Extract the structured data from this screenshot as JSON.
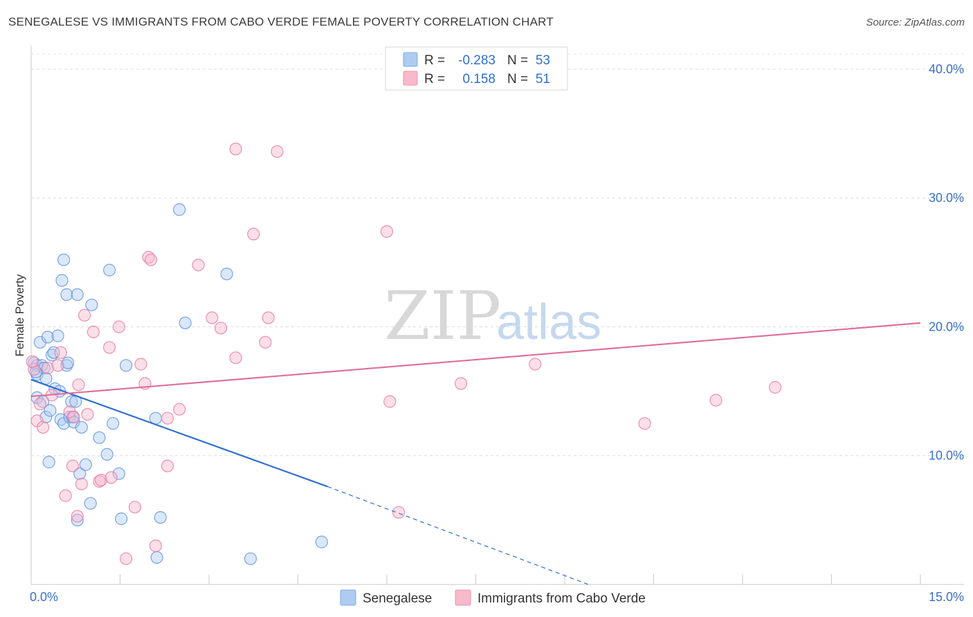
{
  "title": "SENEGALESE VS IMMIGRANTS FROM CABO VERDE FEMALE POVERTY CORRELATION CHART",
  "source": "Source: ZipAtlas.com",
  "watermark": {
    "zip": "ZIP",
    "atlas": "atlas"
  },
  "legend": {
    "rows": [
      {
        "r_label": "R =",
        "r_value": "-0.283",
        "n_label": "N =",
        "n_value": "53",
        "color": "#aecbf2"
      },
      {
        "r_label": "R =",
        "r_value": "0.158",
        "n_label": "N =",
        "n_value": "51",
        "color": "#f7b9cc"
      }
    ]
  },
  "bottom_legend": [
    "Senegalese",
    "Immigrants from Cabo Verde"
  ],
  "chart_data": {
    "type": "scatter",
    "title": "SENEGALESE VS IMMIGRANTS FROM CABO VERDE FEMALE POVERTY CORRELATION CHART",
    "xlabel": "",
    "ylabel": "Female Poverty",
    "xlim": [
      0,
      15
    ],
    "ylim": [
      0,
      41.5
    ],
    "x_tick_labels": [
      "0.0%",
      "15.0%"
    ],
    "y_ticks": [
      10,
      20,
      30,
      40
    ],
    "y_tick_labels": [
      "10.0%",
      "20.0%",
      "30.0%",
      "40.0%"
    ],
    "grid": true,
    "colors": {
      "blue": "#5b8ee0",
      "blue_fill": "#aecbf2",
      "pink": "#e8779c",
      "pink_fill": "#f7b9cc",
      "blue_line": "#2f6fd0",
      "pink_line": "#e0709a"
    },
    "series": [
      {
        "name": "Senegalese",
        "color": "blue",
        "points": [
          [
            0.05,
            17.2
          ],
          [
            0.1,
            17.0
          ],
          [
            0.1,
            16.3
          ],
          [
            0.1,
            14.5
          ],
          [
            0.15,
            18.8
          ],
          [
            0.18,
            17.0
          ],
          [
            0.2,
            14.2
          ],
          [
            0.22,
            16.8
          ],
          [
            0.25,
            13.0
          ],
          [
            0.25,
            16.0
          ],
          [
            0.28,
            19.2
          ],
          [
            0.3,
            9.5
          ],
          [
            0.32,
            13.5
          ],
          [
            0.35,
            17.8
          ],
          [
            0.38,
            18.0
          ],
          [
            0.4,
            15.2
          ],
          [
            0.45,
            19.3
          ],
          [
            0.48,
            15.0
          ],
          [
            0.5,
            12.8
          ],
          [
            0.52,
            23.6
          ],
          [
            0.55,
            25.2
          ],
          [
            0.55,
            12.5
          ],
          [
            0.6,
            17.0
          ],
          [
            0.6,
            22.5
          ],
          [
            0.62,
            17.2
          ],
          [
            0.65,
            13.0
          ],
          [
            0.68,
            14.2
          ],
          [
            0.7,
            13.0
          ],
          [
            0.72,
            12.6
          ],
          [
            0.75,
            14.2
          ],
          [
            0.78,
            22.5
          ],
          [
            0.78,
            5.0
          ],
          [
            0.82,
            8.6
          ],
          [
            0.85,
            12.2
          ],
          [
            0.92,
            9.3
          ],
          [
            1.0,
            6.3
          ],
          [
            1.02,
            21.7
          ],
          [
            1.15,
            11.4
          ],
          [
            1.28,
            10.1
          ],
          [
            1.32,
            24.4
          ],
          [
            1.38,
            12.5
          ],
          [
            1.48,
            8.6
          ],
          [
            1.52,
            5.1
          ],
          [
            1.6,
            17.0
          ],
          [
            2.1,
            12.9
          ],
          [
            2.12,
            2.1
          ],
          [
            2.18,
            5.2
          ],
          [
            2.5,
            29.1
          ],
          [
            2.6,
            20.3
          ],
          [
            3.3,
            24.1
          ],
          [
            3.7,
            2.0
          ],
          [
            4.9,
            3.3
          ],
          [
            0.08,
            16.5
          ]
        ]
      },
      {
        "name": "Immigrants from Cabo Verde",
        "color": "pink",
        "points": [
          [
            0.05,
            16.7
          ],
          [
            0.1,
            12.7
          ],
          [
            0.15,
            14.0
          ],
          [
            0.2,
            12.2
          ],
          [
            0.28,
            16.8
          ],
          [
            0.35,
            14.7
          ],
          [
            0.45,
            17.0
          ],
          [
            0.5,
            18.0
          ],
          [
            0.58,
            6.9
          ],
          [
            0.65,
            13.4
          ],
          [
            0.7,
            9.2
          ],
          [
            0.72,
            13.0
          ],
          [
            0.78,
            5.3
          ],
          [
            0.8,
            15.5
          ],
          [
            0.85,
            7.8
          ],
          [
            0.9,
            20.9
          ],
          [
            0.95,
            13.2
          ],
          [
            1.05,
            19.6
          ],
          [
            1.15,
            8.0
          ],
          [
            1.18,
            8.1
          ],
          [
            1.32,
            18.4
          ],
          [
            1.35,
            8.3
          ],
          [
            1.48,
            20.0
          ],
          [
            1.6,
            2.0
          ],
          [
            1.75,
            6.0
          ],
          [
            1.85,
            17.1
          ],
          [
            1.92,
            15.6
          ],
          [
            1.98,
            25.4
          ],
          [
            2.02,
            25.2
          ],
          [
            2.1,
            3.0
          ],
          [
            2.3,
            9.2
          ],
          [
            2.3,
            12.9
          ],
          [
            2.5,
            13.6
          ],
          [
            2.82,
            24.8
          ],
          [
            3.05,
            20.7
          ],
          [
            3.2,
            19.9
          ],
          [
            3.45,
            17.6
          ],
          [
            3.45,
            33.8
          ],
          [
            3.75,
            27.2
          ],
          [
            3.95,
            18.8
          ],
          [
            4.0,
            20.7
          ],
          [
            4.15,
            33.6
          ],
          [
            6.0,
            27.4
          ],
          [
            6.05,
            14.2
          ],
          [
            6.2,
            5.6
          ],
          [
            7.25,
            15.6
          ],
          [
            8.5,
            17.1
          ],
          [
            10.35,
            12.5
          ],
          [
            11.55,
            14.3
          ],
          [
            12.55,
            15.3
          ],
          [
            0.02,
            17.3
          ]
        ]
      }
    ],
    "trendlines": [
      {
        "series": "Senegalese",
        "solid": [
          [
            0,
            15.9
          ],
          [
            5.0,
            7.6
          ]
        ],
        "dashed": [
          [
            5.0,
            7.6
          ],
          [
            9.4,
            0.0
          ]
        ]
      },
      {
        "series": "Immigrants from Cabo Verde",
        "solid": [
          [
            0,
            14.6
          ],
          [
            15,
            20.3
          ]
        ]
      }
    ]
  }
}
